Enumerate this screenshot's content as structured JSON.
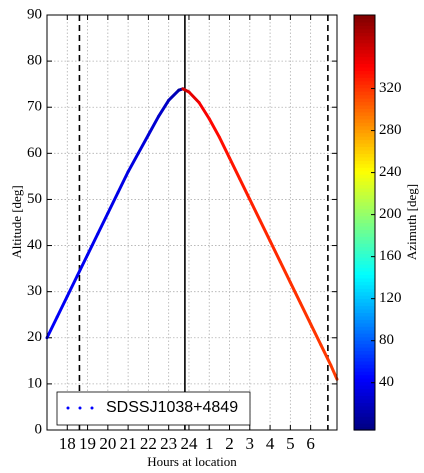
{
  "chart_data": {
    "type": "line",
    "xlabel": "Hours at location",
    "ylabel": "Altitude [deg]",
    "colorbar_label": "Azimuth [deg]",
    "xlim": [
      17.0,
      31.3
    ],
    "ylim": [
      0,
      90
    ],
    "clim": [
      -5,
      390
    ],
    "xticks": [
      18,
      19,
      20,
      21,
      22,
      23,
      24,
      {
        "value": 25,
        "label": "1"
      },
      {
        "value": 26,
        "label": "2"
      },
      {
        "value": 27,
        "label": "3"
      },
      {
        "value": 28,
        "label": "4"
      },
      {
        "value": 29,
        "label": "5"
      },
      {
        "value": 30,
        "label": "6"
      }
    ],
    "yticks": [
      0,
      10,
      20,
      30,
      40,
      50,
      60,
      70,
      80,
      90
    ],
    "cticks": [
      40,
      80,
      120,
      160,
      200,
      240,
      280,
      320
    ],
    "grid": true,
    "legend": "lower left",
    "vlines": [
      {
        "x": 18.6,
        "style": "dashed"
      },
      {
        "x": 23.8,
        "style": "solid"
      },
      {
        "x": 30.85,
        "style": "dashed"
      }
    ],
    "series": [
      {
        "name": "SDSSJ1038+4849",
        "color": "#0000ff",
        "x": [
          17.0,
          17.5,
          18.0,
          18.5,
          19.0,
          19.5,
          20.0,
          20.5,
          21.0,
          21.5,
          22.0,
          22.5,
          23.0,
          23.5,
          23.7,
          24.0,
          24.5,
          25.0,
          25.5,
          26.0,
          26.5,
          27.0,
          27.5,
          28.0,
          28.5,
          29.0,
          29.5,
          30.0,
          30.5,
          31.0,
          31.3
        ],
        "values": [
          20,
          24.5,
          29,
          33.5,
          38,
          42.5,
          47,
          51.5,
          56,
          60,
          64,
          68,
          71.5,
          73.7,
          74,
          73.3,
          71,
          67.5,
          63.5,
          59,
          54.5,
          50,
          45.5,
          41,
          36.5,
          32,
          27.5,
          23,
          18.5,
          14,
          11
        ],
        "azimuth": [
          42,
          41,
          40,
          39,
          38,
          37,
          35,
          34,
          32,
          30,
          27,
          23,
          17,
          8,
          359,
          350,
          343,
          338,
          335,
          332,
          330,
          328,
          326,
          325,
          323,
          322,
          321,
          320,
          319,
          318,
          318
        ]
      }
    ]
  }
}
